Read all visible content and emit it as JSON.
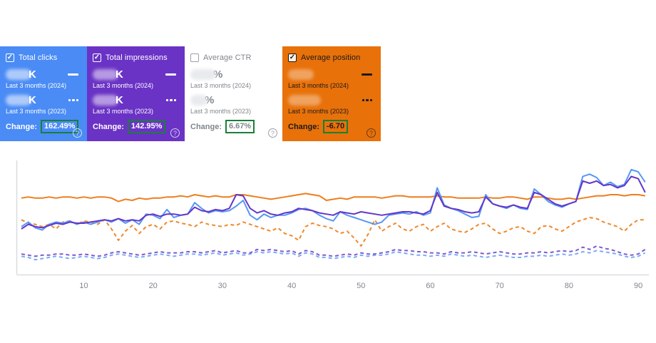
{
  "cards": [
    {
      "label": "Total clicks",
      "checked": true,
      "bg": "#4a8bf5",
      "text_color": "#ffffff",
      "checkbox_color": "#ffffff",
      "blob_color": "rgba(255,255,255,0.55)",
      "value_2024_redacted": "",
      "value_2024_suffix": "K",
      "period_2024": "Last 3 months (2024)",
      "value_2023_redacted": "",
      "value_2023_suffix": "K",
      "period_2023": "Last 3 months (2023)",
      "change_label": "Change:",
      "change_value": "162.49%",
      "help_icon": "?"
    },
    {
      "label": "Total impressions",
      "checked": true,
      "bg": "#6a33c5",
      "text_color": "#ffffff",
      "checkbox_color": "#ffffff",
      "blob_color": "rgba(255,255,255,0.5)",
      "value_2024_redacted": "",
      "value_2024_suffix": "K",
      "period_2024": "Last 3 months (2024)",
      "value_2023_redacted": "",
      "value_2023_suffix": "K",
      "period_2023": "Last 3 months (2023)",
      "change_label": "Change:",
      "change_value": "142.95%",
      "help_icon": "?"
    },
    {
      "label": "Average CTR",
      "checked": false,
      "bg": "#ffffff",
      "text_color": "#80868b",
      "checkbox_color": "#9aa0a6",
      "blob_color": "#e8eaed",
      "value_2024_redacted": "",
      "value_2024_suffix": "%",
      "period_2024": "Last 3 months (2024)",
      "value_2023_redacted": "",
      "value_2023_suffix": "%",
      "period_2023": "Last 3 months (2023)",
      "change_label": "Change:",
      "change_value": "6.67%",
      "help_icon": "?"
    },
    {
      "label": "Average position",
      "checked": true,
      "bg": "#e8710a",
      "text_color": "#1b1b1b",
      "checkbox_color": "#1b1b1b",
      "blob_color": "rgba(255,255,255,0.35)",
      "value_2024_redacted": "",
      "value_2024_suffix": "",
      "period_2024": "Last 3 months (2024)",
      "value_2023_redacted": "",
      "value_2023_suffix": "",
      "period_2023": "Last 3 months (2023)",
      "change_label": "Change:",
      "change_value": "-6.70",
      "help_icon": "?"
    }
  ],
  "chart_data": {
    "type": "line",
    "x_is_day_index": true,
    "x_range": [
      1,
      91
    ],
    "x_ticks": [
      10,
      20,
      30,
      40,
      50,
      60,
      70,
      80,
      90
    ],
    "ylim": [
      0,
      100
    ],
    "y_axis_labels_visible": false,
    "grid": false,
    "legend_position": "in-cards",
    "series": [
      {
        "id": "clicks-2023",
        "name": "Total clicks — Last 3 months (2023)",
        "color": "#7baaf8",
        "dash": true,
        "values": [
          16,
          15,
          13,
          14,
          15,
          16,
          15,
          14,
          15,
          16,
          15,
          14,
          15,
          17,
          18,
          17,
          16,
          15,
          16,
          17,
          18,
          17,
          16,
          17,
          18,
          18,
          17,
          18,
          19,
          17,
          18,
          19,
          17,
          18,
          20,
          19,
          20,
          19,
          18,
          19,
          16,
          19,
          18,
          15,
          15,
          14,
          15,
          16,
          15,
          17,
          16,
          17,
          17,
          18,
          20,
          19,
          18,
          17,
          17,
          16,
          17,
          16,
          18,
          17,
          16,
          17,
          16,
          15,
          16,
          17,
          16,
          15,
          15,
          16,
          16,
          17,
          16,
          17,
          18,
          17,
          18,
          20,
          19,
          21,
          20,
          19,
          18,
          16,
          15,
          16,
          19
        ]
      },
      {
        "id": "impressions-2023",
        "name": "Total impressions — Last 3 months (2023)",
        "color": "#7d5bd0",
        "dash": true,
        "values": [
          18,
          17,
          16,
          17,
          17,
          18,
          18,
          17,
          17,
          18,
          17,
          16,
          17,
          19,
          20,
          19,
          18,
          17,
          18,
          19,
          20,
          19,
          19,
          19,
          20,
          20,
          19,
          20,
          21,
          19,
          20,
          21,
          19,
          19,
          22,
          21,
          22,
          21,
          20,
          21,
          18,
          21,
          20,
          17,
          17,
          16,
          17,
          18,
          17,
          19,
          18,
          18,
          19,
          20,
          22,
          21,
          21,
          20,
          20,
          19,
          19,
          18,
          20,
          19,
          19,
          20,
          19,
          18,
          19,
          20,
          19,
          18,
          18,
          19,
          19,
          20,
          19,
          20,
          21,
          20,
          21,
          24,
          22,
          25,
          23,
          22,
          20,
          18,
          17,
          18,
          22
        ]
      },
      {
        "id": "position-2023",
        "name": "Average position — Last 3 months (2023)",
        "color": "#f0882b",
        "dash": true,
        "values": [
          48,
          45,
          44,
          42,
          44,
          40,
          46,
          47,
          44,
          47,
          46,
          44,
          48,
          40,
          30,
          38,
          43,
          36,
          42,
          44,
          40,
          46,
          47,
          45,
          44,
          42,
          46,
          44,
          43,
          42,
          44,
          43,
          46,
          44,
          42,
          40,
          38,
          41,
          36,
          34,
          30,
          42,
          45,
          43,
          42,
          40,
          36,
          38,
          32,
          25,
          35,
          48,
          38,
          42,
          45,
          40,
          38,
          42,
          44,
          38,
          42,
          45,
          40,
          38,
          37,
          40,
          44,
          45,
          40,
          36,
          38,
          41,
          42,
          38,
          36,
          42,
          43,
          40,
          38,
          42,
          46,
          48,
          50,
          49,
          46,
          44,
          42,
          38,
          44,
          48,
          48
        ]
      },
      {
        "id": "position-2024",
        "name": "Average position — Last 3 months (2024)",
        "color": "#ee7d1d",
        "dash": false,
        "values": [
          67,
          68,
          67,
          67,
          68,
          67,
          68,
          68,
          67,
          68,
          67,
          68,
          68,
          67,
          64,
          66,
          65,
          67,
          66,
          67,
          67,
          68,
          68,
          69,
          68,
          70,
          69,
          68,
          69,
          68,
          68,
          70,
          70,
          69,
          68,
          67,
          66,
          67,
          68,
          69,
          70,
          71,
          70,
          69,
          65,
          66,
          67,
          66,
          68,
          68,
          68,
          68,
          67,
          68,
          69,
          69,
          68,
          68,
          68,
          68,
          69,
          68,
          68,
          67,
          67,
          67,
          67,
          68,
          67,
          67,
          68,
          68,
          67,
          66,
          68,
          68,
          67,
          66,
          66,
          67,
          66,
          67,
          68,
          69,
          69,
          70,
          70,
          69,
          70,
          70,
          69
        ]
      },
      {
        "id": "clicks-2024",
        "name": "Total clicks — Last 3 months (2024)",
        "color": "#5796f5",
        "dash": false,
        "values": [
          42,
          46,
          41,
          39,
          44,
          46,
          45,
          47,
          44,
          46,
          44,
          46,
          48,
          46,
          49,
          45,
          48,
          44,
          53,
          52,
          49,
          57,
          50,
          52,
          53,
          63,
          58,
          54,
          56,
          55,
          56,
          60,
          65,
          52,
          48,
          53,
          50,
          52,
          52,
          54,
          57,
          58,
          56,
          52,
          49,
          47,
          55,
          52,
          50,
          48,
          46,
          44,
          46,
          52,
          53,
          54,
          53,
          55,
          52,
          54,
          76,
          61,
          58,
          56,
          53,
          50,
          51,
          70,
          62,
          60,
          58,
          61,
          58,
          57,
          75,
          70,
          64,
          61,
          59,
          62,
          64,
          86,
          88,
          85,
          78,
          81,
          77,
          79,
          92,
          90,
          81
        ]
      },
      {
        "id": "impressions-2024",
        "name": "Total impressions — Last 3 months (2024)",
        "color": "#6236c9",
        "dash": false,
        "values": [
          40,
          44,
          42,
          41,
          43,
          45,
          44,
          46,
          45,
          45,
          46,
          47,
          48,
          47,
          49,
          47,
          48,
          47,
          52,
          53,
          51,
          53,
          53,
          52,
          53,
          59,
          56,
          55,
          57,
          56,
          58,
          70,
          69,
          58,
          54,
          56,
          53,
          52,
          54,
          55,
          58,
          57,
          56,
          54,
          53,
          52,
          55,
          54,
          53,
          55,
          54,
          53,
          52,
          53,
          54,
          55,
          55,
          54,
          53,
          56,
          72,
          60,
          58,
          57,
          55,
          54,
          55,
          68,
          62,
          60,
          59,
          61,
          59,
          58,
          72,
          70,
          66,
          62,
          60,
          62,
          64,
          82,
          80,
          82,
          78,
          79,
          76,
          78,
          86,
          84,
          72
        ]
      }
    ]
  }
}
